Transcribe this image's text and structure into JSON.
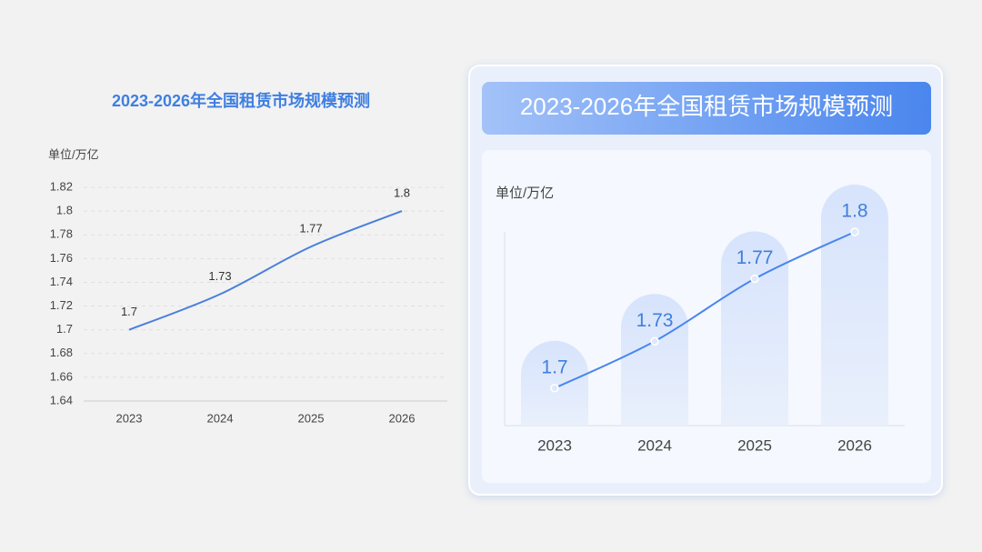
{
  "chart_data": [
    {
      "type": "line",
      "title": "2023-2026年全国租赁市场规模预测",
      "y_unit": "单位/万亿",
      "categories": [
        "2023",
        "2024",
        "2025",
        "2026"
      ],
      "values": [
        1.7,
        1.73,
        1.77,
        1.8
      ],
      "color": "#4a7fdc",
      "ylim": [
        1.64,
        1.82
      ],
      "yticks": [
        1.64,
        1.66,
        1.68,
        1.7,
        1.72,
        1.74,
        1.76,
        1.78,
        1.8,
        1.82
      ],
      "grid": true
    },
    {
      "type": "line",
      "title": "2023-2026年全国租赁市场规模预测",
      "y_unit": "单位/万亿",
      "categories": [
        "2023",
        "2024",
        "2025",
        "2026"
      ],
      "values": [
        1.7,
        1.73,
        1.77,
        1.8
      ],
      "color": "#4a86ee",
      "ylim": [
        1.676,
        1.8
      ]
    }
  ]
}
